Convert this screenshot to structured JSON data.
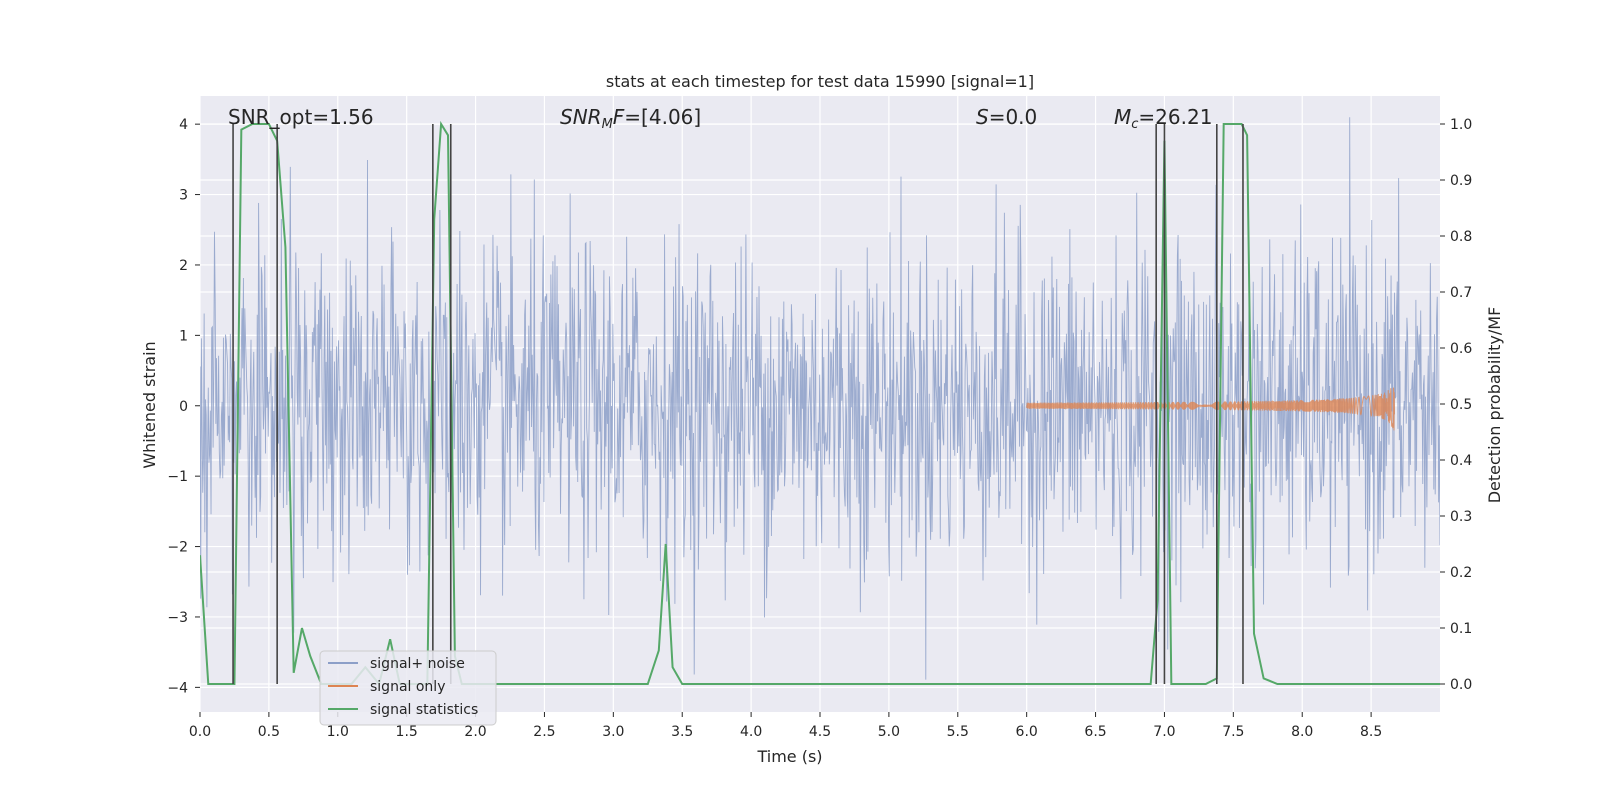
{
  "chart_data": {
    "type": "line",
    "title": "stats at each timestep for test data 15990 [signal=1]",
    "xlabel": "Time (s)",
    "ylabel": "Whitened strain",
    "ylabel_right": "Detection probability/MF",
    "xlim": [
      0.0,
      9.0
    ],
    "ylim": [
      -4.35,
      4.4
    ],
    "ylim_right": [
      -0.05,
      1.05
    ],
    "x_ticks": [
      0.0,
      0.5,
      1.0,
      1.5,
      2.0,
      2.5,
      3.0,
      3.5,
      4.0,
      4.5,
      5.0,
      5.5,
      6.0,
      6.5,
      7.0,
      7.5,
      8.0,
      8.5
    ],
    "x_tick_labels": [
      "0.0",
      "0.5",
      "1.0",
      "1.5",
      "2.0",
      "2.5",
      "3.0",
      "3.5",
      "4.0",
      "4.5",
      "5.0",
      "5.5",
      "6.0",
      "6.5",
      "7.0",
      "7.5",
      "8.0",
      "8.5"
    ],
    "y_ticks": [
      4,
      3,
      2,
      1,
      0,
      -1,
      -2,
      -3,
      -4
    ],
    "y_tick_labels": [
      "4",
      "3",
      "2",
      "1",
      "0",
      "−1",
      "−2",
      "−3",
      "−4"
    ],
    "y2_ticks": [
      1.0,
      0.9,
      0.8,
      0.7,
      0.6,
      0.5,
      0.4,
      0.3,
      0.2,
      0.1,
      0.0
    ],
    "y2_tick_labels": [
      "1.0",
      "0.9",
      "0.8",
      "0.7",
      "0.6",
      "0.5",
      "0.4",
      "0.3",
      "0.2",
      "0.1",
      "0.0"
    ],
    "annotations": {
      "snr_opt": "SNR_opt=1.56",
      "snr_mf_sym": "SNR",
      "snr_mf_sub": "M",
      "snr_mf_f": "F",
      "snr_mf_val": "=[4.06]",
      "s_sym": "S",
      "s_val": "=0.0",
      "mc_sym": "M",
      "mc_sub": "c",
      "mc_val": "=26.21"
    },
    "legend": {
      "location": "lower-left",
      "entries": [
        "signal+ noise",
        "signal only",
        "signal statistics"
      ]
    },
    "series": [
      {
        "name": "signal+ noise",
        "color": "#8c9fc8",
        "axis": "left",
        "kind": "noise",
        "amplitude_std": 1.0,
        "samples": 1800,
        "x_range": [
          0.0,
          9.0
        ]
      },
      {
        "name": "signal only",
        "color": "#dd8452",
        "axis": "left",
        "kind": "chirp",
        "t_start": 6.0,
        "t_end": 8.67,
        "peak_amplitude": 0.4
      },
      {
        "name": "signal statistics",
        "color": "#55a868",
        "axis": "right",
        "x": [
          0.0,
          0.06,
          0.25,
          0.3,
          0.38,
          0.5,
          0.56,
          0.62,
          0.68,
          0.74,
          0.8,
          0.88,
          1.0,
          1.1,
          1.2,
          1.3,
          1.38,
          1.45,
          1.55,
          1.65,
          1.7,
          1.75,
          1.8,
          1.85,
          1.9,
          2.0,
          2.5,
          3.0,
          3.25,
          3.33,
          3.38,
          3.43,
          3.5,
          4.0,
          5.0,
          6.0,
          6.6,
          6.9,
          6.95,
          7.0,
          7.05,
          7.1,
          7.3,
          7.38,
          7.43,
          7.5,
          7.56,
          7.6,
          7.65,
          7.72,
          7.82,
          8.0,
          9.0
        ],
        "values": [
          0.23,
          0.0,
          0.0,
          0.99,
          1.0,
          1.0,
          0.97,
          0.78,
          0.02,
          0.1,
          0.05,
          0.0,
          0.0,
          0.0,
          0.03,
          0.0,
          0.08,
          0.0,
          0.0,
          0.0,
          0.83,
          1.0,
          0.98,
          0.05,
          0.0,
          0.0,
          0.0,
          0.0,
          0.0,
          0.06,
          0.25,
          0.03,
          0.0,
          0.0,
          0.0,
          0.0,
          0.0,
          0.0,
          0.15,
          0.97,
          0.0,
          0.0,
          0.0,
          0.01,
          1.0,
          1.0,
          1.0,
          0.98,
          0.09,
          0.01,
          0.0,
          0.0,
          0.0
        ]
      }
    ],
    "detection_markers": {
      "color": "#444444",
      "axis": "right",
      "bottom": 0.0,
      "top": 1.0,
      "x": [
        0.24,
        0.56,
        1.69,
        1.82,
        6.94,
        7.0,
        7.38,
        7.57
      ]
    }
  }
}
